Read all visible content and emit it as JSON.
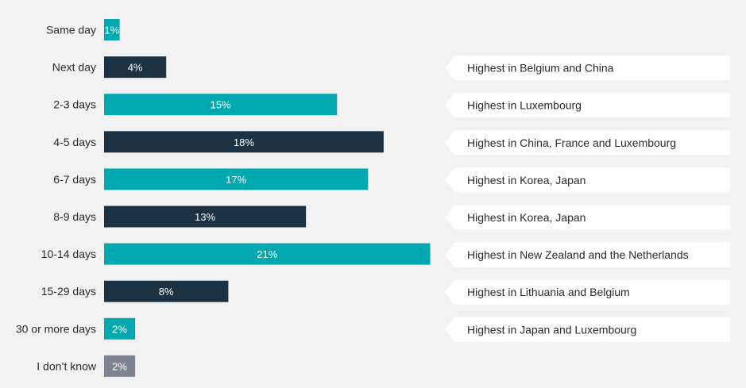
{
  "chart_data": {
    "type": "bar",
    "orientation": "horizontal",
    "categories": [
      "Same day",
      "Next day",
      "2-3 days",
      "4-5 days",
      "6-7 days",
      "8-9 days",
      "10-14 days",
      "15-29 days",
      "30 or more days",
      "I don’t know"
    ],
    "values": [
      1,
      4,
      15,
      18,
      17,
      13,
      21,
      8,
      2,
      2
    ],
    "value_labels": [
      "1%",
      "4%",
      "15%",
      "18%",
      "17%",
      "13%",
      "21%",
      "8%",
      "2%",
      "2%"
    ],
    "unit": "%",
    "bar_colors": [
      "#00a9b0",
      "#1b3244",
      "#00a9b0",
      "#1b3244",
      "#00a9b0",
      "#1b3244",
      "#00a9b0",
      "#1b3244",
      "#00a9b0",
      "#7e8591"
    ],
    "annotations": [
      null,
      "Highest in Belgium and China",
      "Highest in Luxembourg",
      "Highest in China, France and Luxembourg",
      "Highest in Korea, Japan",
      "Highest in Korea, Japan",
      "Highest in New Zealand and the Netherlands",
      "Highest in Lithuania and Belgium",
      "Highest in Japan and Luxembourg",
      null
    ],
    "grid": false,
    "legend": "none"
  },
  "colors": {
    "background": "#f2f2f3",
    "note_background": "#ffffff",
    "teal": "#00a9b0",
    "navy": "#1b3244",
    "grey": "#7e8591"
  }
}
